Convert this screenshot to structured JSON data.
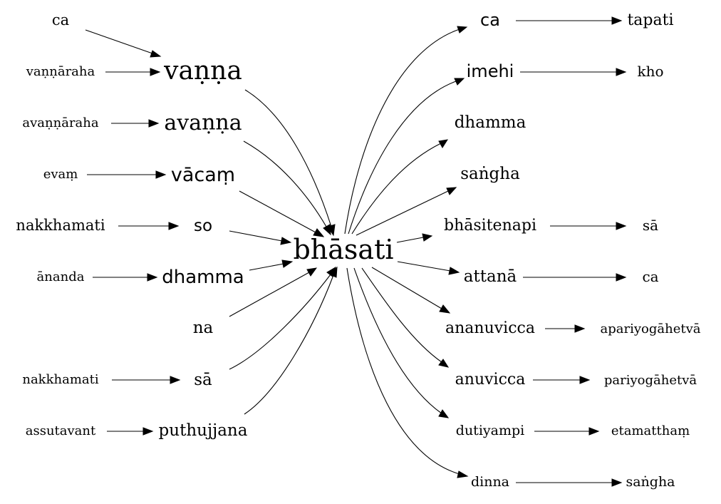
{
  "graph": {
    "center": "bhāsati",
    "left_chains": [
      {
        "source": "ca",
        "target": "vaṇṇa"
      },
      {
        "source": "vaṇṇāraha",
        "target": "vaṇṇa"
      },
      {
        "source": "avaṇṇāraha",
        "target": "avaṇṇa"
      },
      {
        "source": "evaṃ",
        "target": "vācaṃ"
      },
      {
        "source": "nakkhamati",
        "target": "so"
      },
      {
        "source": "ānanda",
        "target": "dhamma"
      },
      {
        "source": "",
        "target": "na"
      },
      {
        "source": "nakkhamati",
        "target": "sā"
      },
      {
        "source": "assutavant",
        "target": "puthujjana"
      }
    ],
    "right_chains": [
      {
        "node": "ca",
        "next": "tapati"
      },
      {
        "node": "imehi",
        "next": "kho"
      },
      {
        "node": "dhamma",
        "next": ""
      },
      {
        "node": "saṅgha",
        "next": ""
      },
      {
        "node": "bhāsitenapi",
        "next": "sā"
      },
      {
        "node": "attanā",
        "next": "ca"
      },
      {
        "node": "ananuvicca",
        "next": "apariyogāhetvā"
      },
      {
        "node": "anuvicca",
        "next": "pariyogāhetvā"
      },
      {
        "node": "dutiyampi",
        "next": "etamatthaṃ"
      },
      {
        "node": "dinna",
        "next": "saṅgha"
      }
    ]
  }
}
